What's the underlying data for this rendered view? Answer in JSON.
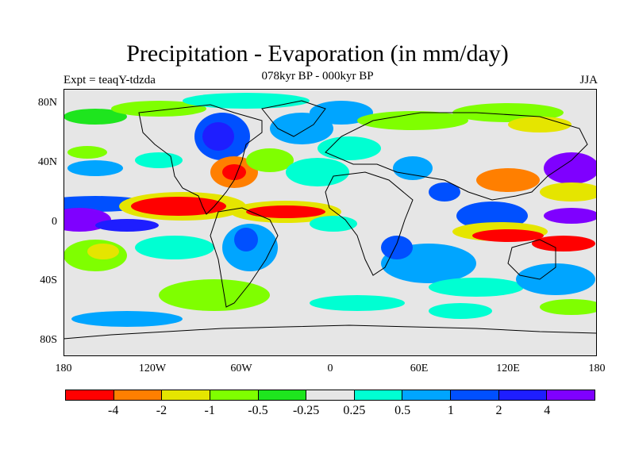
{
  "header": {
    "title": "Precipitation - Evaporation (in mm/day)",
    "subtitle": "078kyr BP - 000kyr BP",
    "experiment": "Expt = teaqY-tdzda",
    "season": "JJA"
  },
  "map": {
    "y_ticks": [
      "80N",
      "40N",
      "0",
      "40S",
      "80S"
    ],
    "x_ticks": [
      "180",
      "120W",
      "60W",
      "0",
      "60E",
      "120E",
      "180"
    ],
    "background_color": "#e6e6e6"
  },
  "colorbar": {
    "colors": [
      "#ff0000",
      "#ff7f00",
      "#e5e500",
      "#7fff00",
      "#1ee51e",
      "#e6e6e6",
      "#00ffd2",
      "#00a5ff",
      "#0050ff",
      "#1e1eff",
      "#7f00ff"
    ],
    "labels": [
      "-4",
      "-2",
      "-1",
      "-0.5",
      "-0.25",
      "0.25",
      "0.5",
      "1",
      "2",
      "4"
    ]
  }
}
